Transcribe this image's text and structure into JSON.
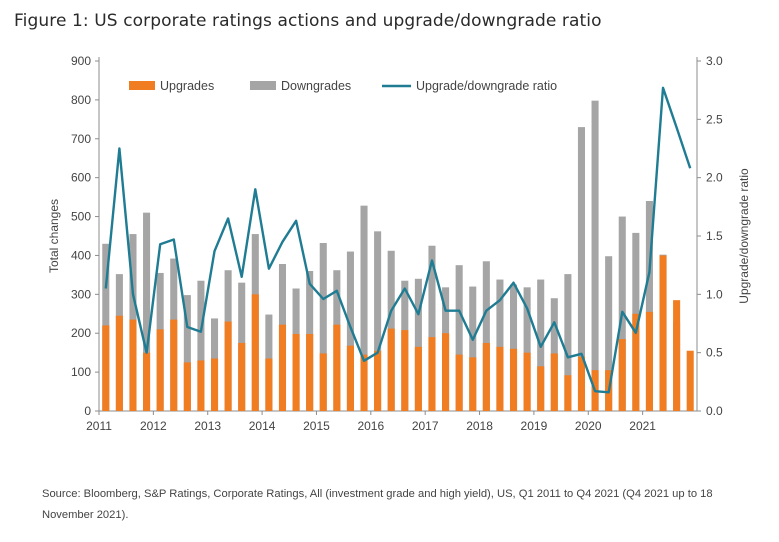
{
  "title": "Figure 1: US corporate ratings actions and upgrade/downgrade ratio",
  "source": "Source: Bloomberg, S&P Ratings, Corporate Ratings, All (investment grade and high yield), US, Q1 2011 to Q4 2021 (Q4 2021 up to 18 November 2021).",
  "colors": {
    "upgrades": "#F07D22",
    "downgrades": "#A5A5A5",
    "ratio": "#1F7C93"
  },
  "chart_data": {
    "type": "bar",
    "x_ticks": [
      "2011",
      "2012",
      "2013",
      "2014",
      "2015",
      "2016",
      "2017",
      "2018",
      "2019",
      "2020",
      "2021"
    ],
    "periods": [
      "2011 Q1",
      "2011 Q2",
      "2011 Q3",
      "2011 Q4",
      "2012 Q1",
      "2012 Q2",
      "2012 Q3",
      "2012 Q4",
      "2013 Q1",
      "2013 Q2",
      "2013 Q3",
      "2013 Q4",
      "2014 Q1",
      "2014 Q2",
      "2014 Q3",
      "2014 Q4",
      "2015 Q1",
      "2015 Q2",
      "2015 Q3",
      "2015 Q4",
      "2016 Q1",
      "2016 Q2",
      "2016 Q3",
      "2016 Q4",
      "2017 Q1",
      "2017 Q2",
      "2017 Q3",
      "2017 Q4",
      "2018 Q1",
      "2018 Q2",
      "2018 Q3",
      "2018 Q4",
      "2019 Q1",
      "2019 Q2",
      "2019 Q3",
      "2019 Q4",
      "2020 Q1",
      "2020 Q2",
      "2020 Q3",
      "2020 Q4",
      "2021 Q1",
      "2021 Q2",
      "2021 Q3",
      "2021 Q4"
    ],
    "series": [
      {
        "name": "Upgrades",
        "axis": "left",
        "type": "bar",
        "values": [
          220,
          245,
          235,
          150,
          210,
          235,
          125,
          130,
          135,
          230,
          175,
          300,
          135,
          222,
          198,
          198,
          148,
          222,
          168,
          145,
          155,
          212,
          208,
          165,
          190,
          200,
          145,
          138,
          175,
          165,
          160,
          150,
          115,
          148,
          92,
          140,
          105,
          105,
          185,
          250,
          255,
          400,
          285,
          155
        ]
      },
      {
        "name": "Downgrades",
        "axis": "left",
        "type": "bar",
        "values": [
          430,
          352,
          455,
          510,
          355,
          392,
          298,
          335,
          238,
          362,
          330,
          455,
          248,
          378,
          315,
          360,
          432,
          362,
          410,
          528,
          462,
          412,
          335,
          340,
          425,
          318,
          375,
          320,
          385,
          338,
          325,
          318,
          338,
          290,
          352,
          730,
          798,
          398,
          500,
          458,
          540,
          402,
          228,
          0
        ]
      },
      {
        "name": "Upgrade/downgrade ratio",
        "axis": "right",
        "type": "line",
        "values": [
          1.05,
          2.25,
          1.0,
          0.5,
          1.43,
          1.47,
          0.72,
          0.68,
          1.37,
          1.65,
          1.15,
          1.9,
          1.22,
          1.45,
          1.63,
          1.09,
          0.96,
          1.03,
          0.72,
          0.43,
          0.5,
          0.86,
          1.05,
          0.83,
          1.29,
          0.86,
          0.86,
          0.61,
          0.86,
          0.95,
          1.1,
          0.88,
          0.55,
          0.76,
          0.46,
          0.49,
          0.17,
          0.16,
          0.85,
          0.67,
          1.19,
          2.77,
          2.43,
          2.08
        ]
      }
    ],
    "y_left": {
      "label": "Total changes",
      "min": 0,
      "max": 900,
      "ticks": [
        "0",
        "100",
        "200",
        "300",
        "400",
        "500",
        "600",
        "700",
        "800",
        "900"
      ]
    },
    "y_right": {
      "label": "Upgrade/downgrade ratio",
      "min": 0,
      "max": 3.0,
      "ticks": [
        "0.0",
        "0.5",
        "1.0",
        "1.5",
        "2.0",
        "2.5",
        "3.0"
      ]
    },
    "grid": false,
    "legend": "top-left, horizontal"
  }
}
